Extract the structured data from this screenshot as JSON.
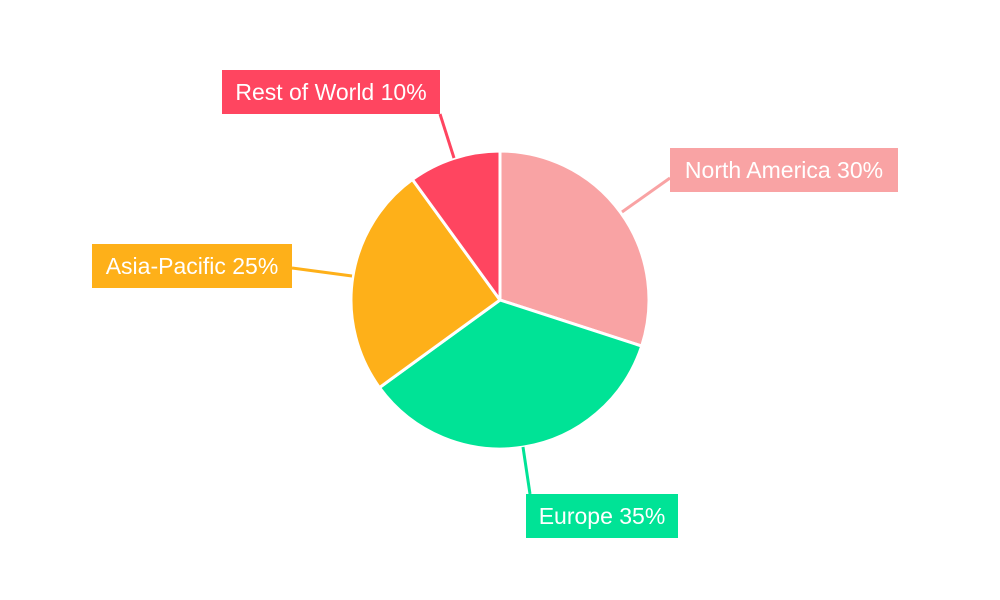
{
  "chart_data": {
    "type": "pie",
    "start_angle": "12 o'clock",
    "direction": "clockwise",
    "slices": [
      {
        "label": "North America",
        "value": 30,
        "display": "North America 30%",
        "color": "#F9A3A4"
      },
      {
        "label": "Europe",
        "value": 35,
        "display": "Europe 35%",
        "color": "#00E396"
      },
      {
        "label": "Asia-Pacific",
        "value": 25,
        "display": "Asia-Pacific 25%",
        "color": "#FEB019"
      },
      {
        "label": "Rest of World",
        "value": 10,
        "display": "Rest of World 10%",
        "color": "#FF4560"
      }
    ],
    "label_text_color": "#FFFFFF",
    "slice_border_color": "#FFFFFF",
    "legend": "none"
  }
}
